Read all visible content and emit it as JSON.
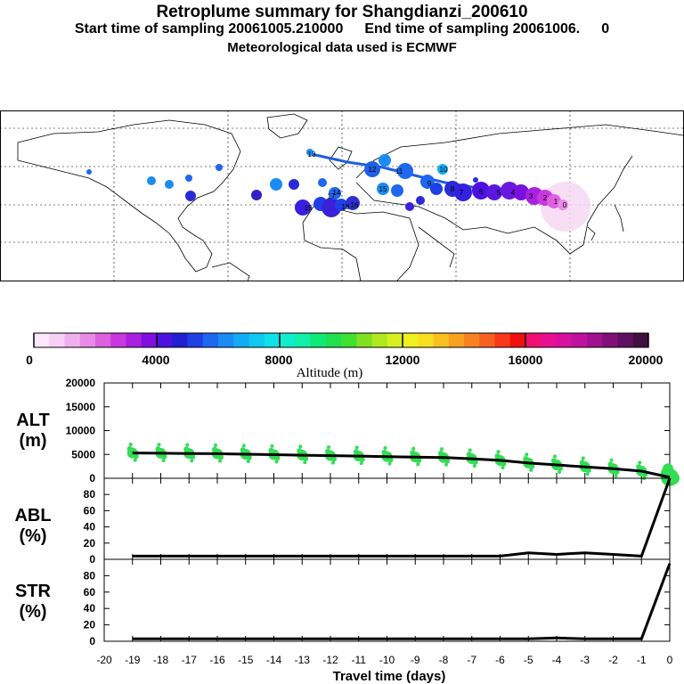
{
  "header": {
    "title": "Retroplume summary for Shangdianzi_200610",
    "start_label": "Start time of sampling 20061005.210000",
    "end_label": "End time of sampling 20061006.",
    "end_suffix": "0",
    "met_label": "Meteorological data used is ECMWF"
  },
  "map": {
    "track_color": "#1e60e0",
    "cluster_labels": [
      "19",
      "18",
      "17",
      "16",
      "15",
      "14",
      "13",
      "12",
      "11",
      "10",
      "9",
      "8",
      "7",
      "6",
      "5",
      "4",
      "3",
      "2",
      "1",
      "0"
    ]
  },
  "colorbar": {
    "title": "Altitude (m)",
    "ticks": [
      "0",
      "4000",
      "8000",
      "12000",
      "16000",
      "20000"
    ],
    "range": [
      0,
      20000
    ],
    "colors": [
      "#fde8fb",
      "#f8d0f5",
      "#f0b0ef",
      "#e88ae6",
      "#dd60df",
      "#c838df",
      "#a820e0",
      "#8010e0",
      "#4c10e0",
      "#2020d0",
      "#1e40e6",
      "#1f66f0",
      "#1a8cf4",
      "#12acf4",
      "#10c8f0",
      "#10e0e8",
      "#10eed0",
      "#10f0a8",
      "#10e878",
      "#20e050",
      "#40e030",
      "#80e020",
      "#b0e820",
      "#d8f020",
      "#f0f020",
      "#f8e020",
      "#f8c020",
      "#f8a020",
      "#f88020",
      "#f86020",
      "#f83818",
      "#f01010",
      "#f01070",
      "#e81090",
      "#d810a0",
      "#c010a0",
      "#a01090",
      "#801078",
      "#601060",
      "#401040"
    ]
  },
  "chart_data": [
    {
      "type": "line",
      "name": "ALT",
      "ylabel_line1": "ALT",
      "ylabel_line2": "(m)",
      "ylim": [
        0,
        20000
      ],
      "yticks": [
        "0",
        "5000",
        "10000",
        "15000",
        "20000"
      ],
      "x": [
        -19,
        -18,
        -17,
        -16,
        -15,
        -14,
        -13,
        -12,
        -11,
        -10,
        -9,
        -8,
        -7,
        -6,
        -5,
        -4,
        -3,
        -2,
        -1,
        0
      ],
      "values": [
        5300,
        5250,
        5200,
        5150,
        5050,
        4950,
        4850,
        4750,
        4650,
        4550,
        4450,
        4350,
        4100,
        3750,
        3200,
        2800,
        2400,
        2000,
        1500,
        200
      ],
      "scatter_color": "#33dd55"
    },
    {
      "type": "line",
      "name": "ABL",
      "ylabel_line1": "ABL",
      "ylabel_line2": "(%)",
      "ylim": [
        0,
        100
      ],
      "yticks": [
        "0",
        "20",
        "40",
        "60",
        "80"
      ],
      "x": [
        -19,
        -18,
        -17,
        -16,
        -15,
        -14,
        -13,
        -12,
        -11,
        -10,
        -9,
        -8,
        -7,
        -6,
        -5,
        -4,
        -3,
        -2,
        -1,
        0
      ],
      "values": [
        4,
        4,
        4,
        4,
        4,
        4,
        4,
        4,
        4,
        4,
        4,
        4,
        4,
        4,
        8,
        6,
        8,
        6,
        4,
        100
      ]
    },
    {
      "type": "line",
      "name": "STR",
      "ylabel_line1": "STR",
      "ylabel_line2": "(%)",
      "ylim": [
        0,
        100
      ],
      "yticks": [
        "0",
        "20",
        "40",
        "60",
        "80"
      ],
      "x": [
        -19,
        -18,
        -17,
        -16,
        -15,
        -14,
        -13,
        -12,
        -11,
        -10,
        -9,
        -8,
        -7,
        -6,
        -5,
        -4,
        -3,
        -2,
        -1,
        0
      ],
      "values": [
        3,
        3,
        3,
        3,
        3,
        3,
        3,
        3,
        3,
        3,
        3,
        3,
        3,
        3,
        3,
        4,
        3,
        3,
        3,
        95
      ],
      "xlabel": "Travel time (days)",
      "xlim": [
        -20,
        0
      ],
      "xticks": [
        "-20",
        "-19",
        "-18",
        "-17",
        "-16",
        "-15",
        "-14",
        "-13",
        "-12",
        "-11",
        "-10",
        "-9",
        "-8",
        "-7",
        "-6",
        "-5",
        "-4",
        "-3",
        "-2",
        "-1",
        "0"
      ]
    }
  ]
}
